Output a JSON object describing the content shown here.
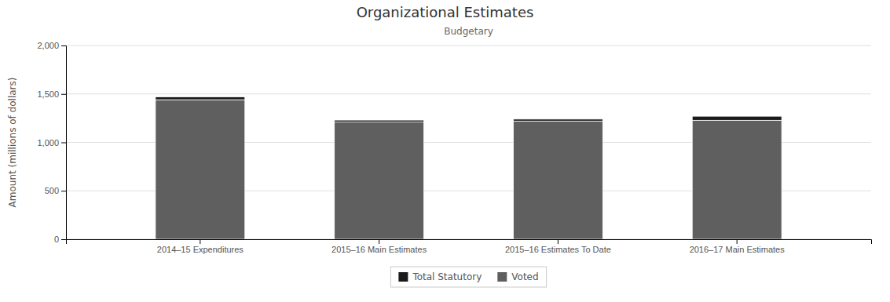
{
  "chart_data": {
    "type": "bar",
    "stacked": true,
    "title": "Organizational Estimates",
    "subtitle": "Budgetary",
    "y_label": "Amount (millions of dollars)",
    "categories": [
      "2014–15 Expenditures",
      "2015–16 Main Estimates",
      "2015–16 Estimates To Date",
      "2016–17 Main Estimates"
    ],
    "series": [
      {
        "name": "Voted",
        "color": "#5f5f5f",
        "values": [
          1440,
          1210,
          1220,
          1228
        ]
      },
      {
        "name": "Total Statutory",
        "color": "#1a1a1a",
        "values": [
          30,
          20,
          20,
          42
        ]
      }
    ],
    "ylim": [
      0,
      2000
    ],
    "yticks": [
      0,
      500,
      {
        "value": 1000,
        "label": "1,000"
      },
      {
        "value": 1500,
        "label": "1,500"
      },
      {
        "value": 2000,
        "label": "2,000"
      }
    ],
    "grid": true,
    "legend": "bottom"
  }
}
